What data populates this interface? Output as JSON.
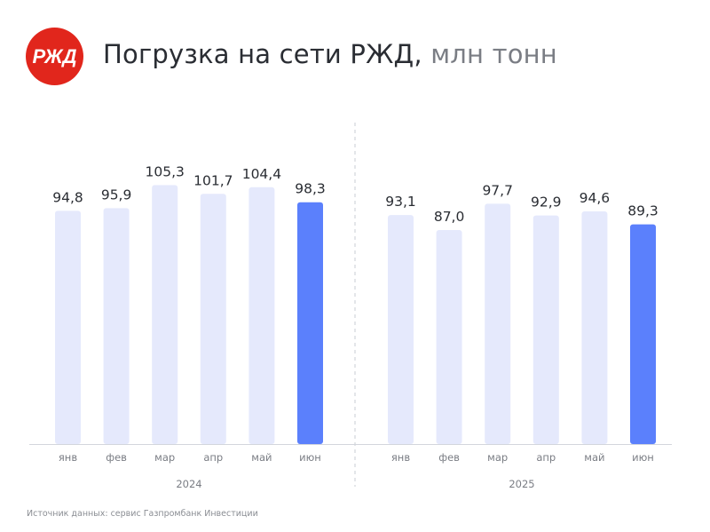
{
  "header": {
    "title_main": "Погрузка на сети РЖД,",
    "title_unit": "млн тонн",
    "logo_text": "РЖД"
  },
  "colors": {
    "bar_default": "#e5e9fc",
    "bar_highlight": "#5b80fc",
    "logo_red": "#e1261c",
    "text": "#2a2d33",
    "axis_label": "#7a7d84"
  },
  "chart_data": {
    "type": "bar",
    "title": "Погрузка на сети РЖД, млн тонн",
    "ylim": [
      0,
      110
    ],
    "grid": false,
    "groups": [
      {
        "name": "2024",
        "categories": [
          "янв",
          "фев",
          "мар",
          "апр",
          "май",
          "июн"
        ],
        "values": [
          94.8,
          95.9,
          105.3,
          101.7,
          104.4,
          98.3
        ],
        "labels": [
          "94,8",
          "95,9",
          "105,3",
          "101,7",
          "104,4",
          "98,3"
        ],
        "highlight_index": 5
      },
      {
        "name": "2025",
        "categories": [
          "янв",
          "фев",
          "мар",
          "апр",
          "май",
          "июн"
        ],
        "values": [
          93.1,
          87.0,
          97.7,
          92.9,
          94.6,
          89.3
        ],
        "labels": [
          "93,1",
          "87,0",
          "97,7",
          "92,9",
          "94,6",
          "89,3"
        ],
        "highlight_index": 5
      }
    ]
  },
  "footer": {
    "source": "Источник данных: сервис Газпромбанк Инвестиции"
  }
}
